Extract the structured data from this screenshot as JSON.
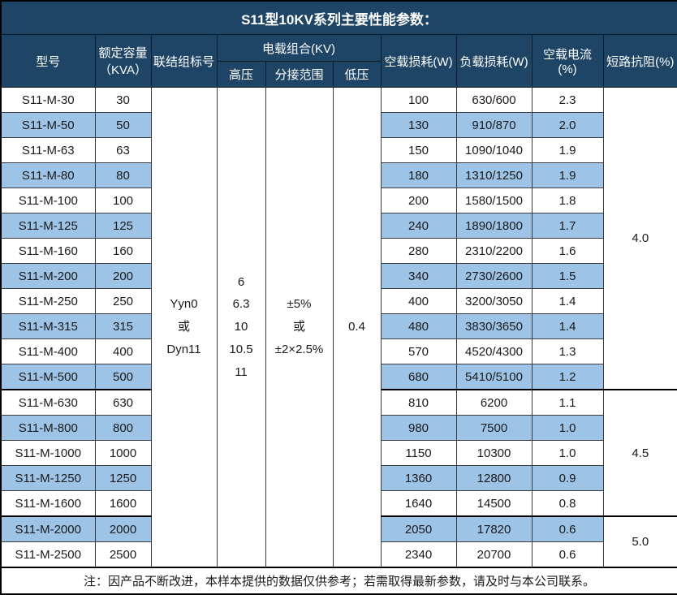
{
  "title": "S11型10KV系列主要性能参数：",
  "colors": {
    "header_bg": "#1E4565",
    "alt_row_bg": "#9DC3E6",
    "grid_border": "#3a3a3a",
    "outer_border": "#000000",
    "header_text": "#ffffff",
    "body_text": "#1a1a1a"
  },
  "header": {
    "model": "型号",
    "capacity_line1": "额定容量",
    "capacity_line2": "（KVA）",
    "connection": "联结组标号",
    "load_combo": "电载组合(KV)",
    "hv": "高压",
    "tap_range": "分接范围",
    "lv": "低压",
    "no_load_loss": "空载损耗(W)",
    "load_loss": "负载损耗(W)",
    "no_load_current": "空载电流(%)",
    "impedance": "短路抗阻(%)"
  },
  "merged": {
    "connection_lines": [
      "Yyn0",
      "或",
      "Dyn11"
    ],
    "hv_lines": [
      "6",
      "6.3",
      "10",
      "10.5",
      "11"
    ],
    "tap_lines": [
      "±5%",
      "或",
      "±2×2.5%"
    ],
    "lv": "0.4"
  },
  "impedance_groups": [
    {
      "value": "4.0",
      "rows": 12
    },
    {
      "value": "4.5",
      "rows": 5
    },
    {
      "value": "5.0",
      "rows": 2
    }
  ],
  "rows": [
    {
      "model": "S11-M-30",
      "capacity": "30",
      "no_load_loss": "100",
      "load_loss": "630/600",
      "no_load_current": "2.3"
    },
    {
      "model": "S11-M-50",
      "capacity": "50",
      "no_load_loss": "130",
      "load_loss": "910/870",
      "no_load_current": "2.0"
    },
    {
      "model": "S11-M-63",
      "capacity": "63",
      "no_load_loss": "150",
      "load_loss": "1090/1040",
      "no_load_current": "1.9"
    },
    {
      "model": "S11-M-80",
      "capacity": "80",
      "no_load_loss": "180",
      "load_loss": "1310/1250",
      "no_load_current": "1.9"
    },
    {
      "model": "S11-M-100",
      "capacity": "100",
      "no_load_loss": "200",
      "load_loss": "1580/1500",
      "no_load_current": "1.8"
    },
    {
      "model": "S11-M-125",
      "capacity": "125",
      "no_load_loss": "240",
      "load_loss": "1890/1800",
      "no_load_current": "1.7"
    },
    {
      "model": "S11-M-160",
      "capacity": "160",
      "no_load_loss": "280",
      "load_loss": "2310/2200",
      "no_load_current": "1.6"
    },
    {
      "model": "S11-M-200",
      "capacity": "200",
      "no_load_loss": "340",
      "load_loss": "2730/2600",
      "no_load_current": "1.5"
    },
    {
      "model": "S11-M-250",
      "capacity": "250",
      "no_load_loss": "400",
      "load_loss": "3200/3050",
      "no_load_current": "1.4"
    },
    {
      "model": "S11-M-315",
      "capacity": "315",
      "no_load_loss": "480",
      "load_loss": "3830/3650",
      "no_load_current": "1.4"
    },
    {
      "model": "S11-M-400",
      "capacity": "400",
      "no_load_loss": "570",
      "load_loss": "4520/4300",
      "no_load_current": "1.3"
    },
    {
      "model": "S11-M-500",
      "capacity": "500",
      "no_load_loss": "680",
      "load_loss": "5410/5100",
      "no_load_current": "1.2"
    },
    {
      "model": "S11-M-630",
      "capacity": "630",
      "no_load_loss": "810",
      "load_loss": "6200",
      "no_load_current": "1.1"
    },
    {
      "model": "S11-M-800",
      "capacity": "800",
      "no_load_loss": "980",
      "load_loss": "7500",
      "no_load_current": "1.0"
    },
    {
      "model": "S11-M-1000",
      "capacity": "1000",
      "no_load_loss": "1150",
      "load_loss": "10300",
      "no_load_current": "1.0"
    },
    {
      "model": "S11-M-1250",
      "capacity": "1250",
      "no_load_loss": "1360",
      "load_loss": "12800",
      "no_load_current": "0.9"
    },
    {
      "model": "S11-M-1600",
      "capacity": "1600",
      "no_load_loss": "1640",
      "load_loss": "14500",
      "no_load_current": "0.8"
    },
    {
      "model": "S11-M-2000",
      "capacity": "2000",
      "no_load_loss": "2050",
      "load_loss": "17820",
      "no_load_current": "0.6"
    },
    {
      "model": "S11-M-2500",
      "capacity": "2500",
      "no_load_loss": "2340",
      "load_loss": "20700",
      "no_load_current": "0.6"
    }
  ],
  "note": "注：因产品不断改进，本样本提供的数据仅供参考；若需取得最新参数，请及时与本公司联系。"
}
